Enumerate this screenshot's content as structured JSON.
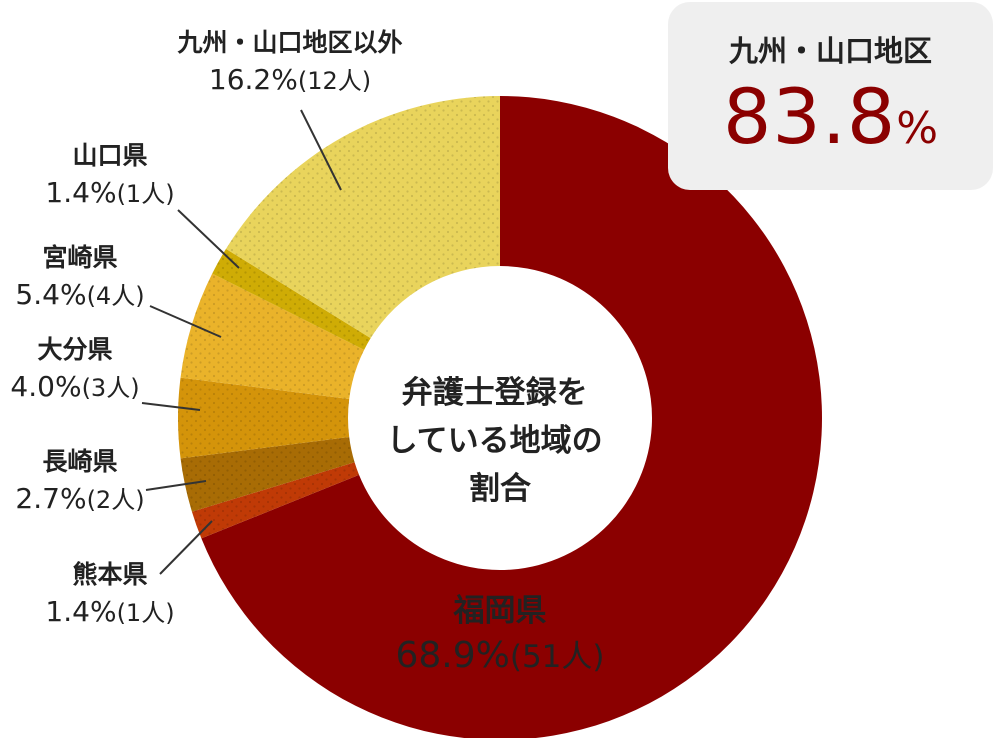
{
  "chart_data": {
    "type": "pie",
    "center_label": [
      "弁護士登録を",
      "している地域の",
      "割合"
    ],
    "slices": [
      {
        "name": "福岡県",
        "value": 68.9,
        "value_label": "68.9%",
        "count_label": "(51人)",
        "color": "#8b0000"
      },
      {
        "name": "熊本県",
        "value": 1.4,
        "value_label": "1.4%",
        "count_label": "(1人)",
        "color": "#c03a06"
      },
      {
        "name": "長崎県",
        "value": 2.7,
        "value_label": "2.7%",
        "count_label": "(2人)",
        "color": "#a86c05"
      },
      {
        "name": "大分県",
        "value": 4.0,
        "value_label": "4.0%",
        "count_label": "(3人)",
        "color": "#d4940a"
      },
      {
        "name": "宮崎県",
        "value": 5.4,
        "value_label": "5.4%",
        "count_label": "(4人)",
        "color": "#eab32a"
      },
      {
        "name": "山口県",
        "value": 1.4,
        "value_label": "1.4%",
        "count_label": "(1人)",
        "color": "#cfac05"
      },
      {
        "name": "九州・山口地区以外",
        "value": 16.2,
        "value_label": "16.2%",
        "count_label": "(12人)",
        "color": "#e9d45c"
      }
    ]
  },
  "summary": {
    "title": "九州・山口地区",
    "value": "83.8",
    "unit": "%"
  }
}
